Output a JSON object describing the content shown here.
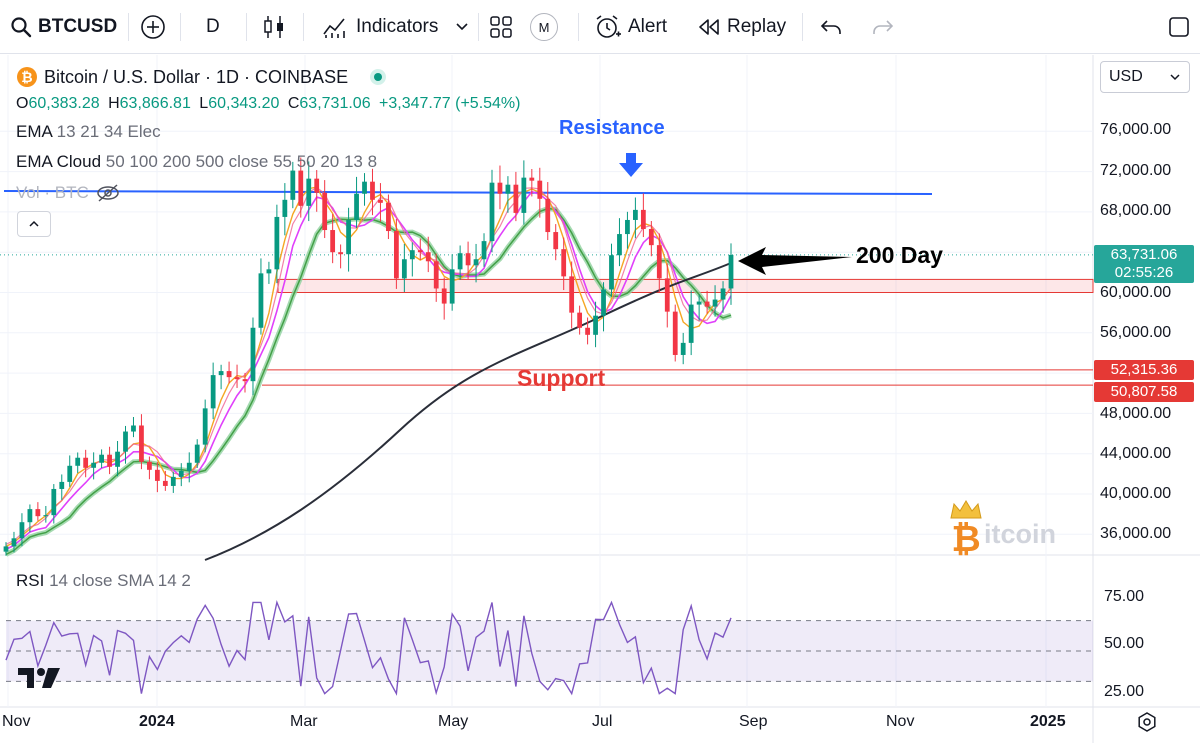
{
  "toolbar": {
    "symbol": "BTCUSD",
    "interval": "D",
    "indicators_label": "Indicators",
    "m_badge": "M",
    "alert_label": "Alert",
    "replay_label": "Replay"
  },
  "legend": {
    "title": "Bitcoin / U.S. Dollar · 1D · COINBASE",
    "ohlc": {
      "o_label": "O",
      "o": "60,383.28",
      "h_label": "H",
      "h": "63,866.81",
      "l_label": "L",
      "l": "60,343.20",
      "c_label": "C",
      "c": "63,731.06",
      "change": "+3,347.77 (+5.54%)"
    },
    "ema_name": "EMA",
    "ema_params": "13 21 34 Elec",
    "cloud_name": "EMA Cloud",
    "cloud_params": "50 100 200 500 close 55 50 20 13 8",
    "vol_name": "Vol · BTC",
    "rsi_name": "RSI",
    "rsi_params": "14 close SMA 14 2"
  },
  "currency": "USD",
  "annotations": {
    "resistance": "Resistance",
    "support": "Support",
    "day200": "200 Day"
  },
  "watermark": "itcoin",
  "price_scale": [
    "76,000.00",
    "72,000.00",
    "68,000.00",
    "60,000.00",
    "56,000.00",
    "48,000.00",
    "44,000.00",
    "40,000.00",
    "36,000.00"
  ],
  "rsi_scale": [
    "75.00",
    "50.00",
    "25.00"
  ],
  "price_tags": {
    "last": "63,731.06",
    "countdown": "02:55:26",
    "support_top": "52,315.36",
    "support_bottom": "50,807.58"
  },
  "time_axis": [
    "Nov",
    "2024",
    "Mar",
    "May",
    "Jul",
    "Sep",
    "Nov",
    "2025"
  ],
  "colors": {
    "up": "#089981",
    "down": "#f23645",
    "resistance": "#2962ff",
    "support": "#e53935",
    "ma200": "#2a2e39",
    "rsi": "#7e57c2"
  },
  "chart_data": {
    "type": "candlestick",
    "instrument": "BTCUSD",
    "interval": "1D",
    "last_close": 63731.06,
    "resistance_level": 70000,
    "support_levels": [
      52315.36,
      50807.58
    ],
    "zone": [
      60000,
      61300
    ],
    "y_range": [
      34000,
      78500
    ],
    "rsi_levels": [
      75,
      50,
      25
    ],
    "closes_approx": [
      34800,
      35600,
      37200,
      38500,
      37800,
      37900,
      40500,
      41200,
      42800,
      43600,
      42600,
      43100,
      43900,
      42700,
      44200,
      46200,
      46800,
      43200,
      42400,
      41300,
      40800,
      41700,
      42300,
      43100,
      44900,
      48500,
      51800,
      52200,
      51600,
      51400,
      51200,
      56500,
      61900,
      62300,
      67500,
      69200,
      72100,
      68600,
      71300,
      69900,
      66200,
      64000,
      63800,
      67200,
      69800,
      71000,
      69200,
      68900,
      66100,
      61400,
      63300,
      64200,
      64000,
      63100,
      60400,
      58900,
      62300,
      63900,
      62700,
      63300,
      65100,
      70900,
      69800,
      70700,
      67900,
      71400,
      71100,
      69300,
      66000,
      64300,
      61600,
      58000,
      56500,
      55800,
      57700,
      60300,
      63700,
      65800,
      67200,
      68200,
      66300,
      64700,
      61400,
      58100,
      53800,
      55000,
      58800,
      59100,
      58600,
      59300,
      60400,
      63731
    ]
  }
}
